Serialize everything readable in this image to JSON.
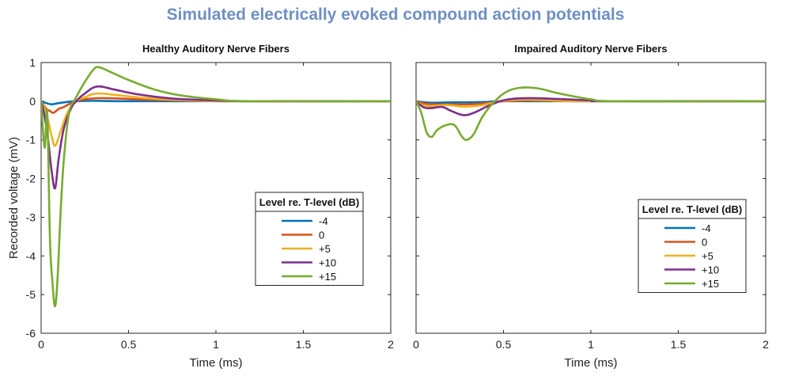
{
  "title": "Simulated electrically evoked compound action potentials",
  "chart_data": [
    {
      "type": "line",
      "title": "Healthy Auditory Nerve Fibers",
      "xlabel": "Time (ms)",
      "ylabel": "Recorded voltage (mV)",
      "xlim": [
        0,
        2
      ],
      "ylim": [
        -6,
        1
      ],
      "xticks": [
        "0",
        "0.5",
        "1",
        "1.5",
        "2"
      ],
      "yticks": [
        "1",
        "0",
        "-1",
        "-2",
        "-3",
        "-4",
        "-5",
        "-6"
      ],
      "grid": false,
      "legend_title": "Level re. T-level (dB)",
      "legend_position": "center-right",
      "series": [
        {
          "name": "-4",
          "color": "#0072bd",
          "x": [
            0,
            0.03,
            0.06,
            0.1,
            0.15,
            0.2,
            0.3,
            0.5,
            1,
            2
          ],
          "y": [
            0,
            -0.05,
            -0.08,
            -0.05,
            -0.02,
            0,
            0.01,
            0,
            0,
            0
          ]
        },
        {
          "name": "0",
          "color": "#d95319",
          "x": [
            0,
            0.03,
            0.05,
            0.07,
            0.1,
            0.13,
            0.17,
            0.2,
            0.25,
            0.33,
            0.45,
            0.6,
            0.8,
            1.1,
            2
          ],
          "y": [
            0,
            -0.2,
            -0.25,
            -0.3,
            -0.2,
            -0.15,
            -0.05,
            0,
            0.05,
            0.08,
            0.07,
            0.04,
            0.02,
            0,
            0
          ]
        },
        {
          "name": "+5",
          "color": "#edb120",
          "x": [
            0,
            0.02,
            0.04,
            0.06,
            0.08,
            0.11,
            0.15,
            0.2,
            0.25,
            0.32,
            0.45,
            0.6,
            0.8,
            1.1,
            2
          ],
          "y": [
            0,
            -0.2,
            -0.5,
            -0.9,
            -1.15,
            -0.8,
            -0.3,
            0,
            0.1,
            0.2,
            0.15,
            0.08,
            0.03,
            0,
            0
          ]
        },
        {
          "name": "+10",
          "color": "#7e2f8e",
          "x": [
            0,
            0.02,
            0.04,
            0.06,
            0.08,
            0.1,
            0.13,
            0.17,
            0.2,
            0.25,
            0.32,
            0.42,
            0.55,
            0.75,
            1.0,
            1.2,
            2
          ],
          "y": [
            0,
            -0.4,
            -1.0,
            -1.8,
            -2.25,
            -1.5,
            -0.7,
            -0.2,
            0,
            0.2,
            0.38,
            0.3,
            0.18,
            0.07,
            0.02,
            0,
            0
          ]
        },
        {
          "name": "+15",
          "color": "#77ac30",
          "x": [
            0,
            0.02,
            0.035,
            0.05,
            0.065,
            0.08,
            0.095,
            0.11,
            0.13,
            0.16,
            0.2,
            0.25,
            0.3,
            0.33,
            0.4,
            0.5,
            0.65,
            0.8,
            1.0,
            1.2,
            2
          ],
          "y": [
            0,
            -1.2,
            -0.3,
            -3.5,
            -4.7,
            -5.3,
            -4.5,
            -3.0,
            -1.5,
            -0.3,
            0.1,
            0.5,
            0.82,
            0.88,
            0.75,
            0.55,
            0.3,
            0.15,
            0.05,
            0,
            0
          ]
        }
      ]
    },
    {
      "type": "line",
      "title": "Impaired Auditory Nerve Fibers",
      "xlabel": "Time (ms)",
      "ylabel": "",
      "xlim": [
        0,
        2
      ],
      "ylim": [
        -6,
        1
      ],
      "xticks": [
        "0",
        "0.5",
        "1",
        "1.5",
        "2"
      ],
      "yticks": [],
      "grid": false,
      "legend_title": "Level re. T-level (dB)",
      "legend_position": "center-right",
      "series": [
        {
          "name": "-4",
          "color": "#0072bd",
          "x": [
            0,
            0.05,
            0.1,
            0.2,
            0.3,
            0.4,
            0.5,
            1,
            2
          ],
          "y": [
            0,
            -0.03,
            -0.04,
            -0.03,
            -0.03,
            -0.02,
            0,
            0,
            0
          ]
        },
        {
          "name": "0",
          "color": "#d95319",
          "x": [
            0,
            0.05,
            0.1,
            0.2,
            0.3,
            0.4,
            0.5,
            0.65,
            0.8,
            1.0,
            2
          ],
          "y": [
            0,
            -0.06,
            -0.08,
            -0.08,
            -0.08,
            -0.05,
            0,
            0.02,
            0.01,
            0,
            0
          ]
        },
        {
          "name": "+5",
          "color": "#edb120",
          "x": [
            0,
            0.05,
            0.1,
            0.18,
            0.28,
            0.38,
            0.48,
            0.6,
            0.75,
            0.95,
            2
          ],
          "y": [
            0,
            -0.12,
            -0.12,
            -0.1,
            -0.14,
            -0.1,
            0,
            0.04,
            0.03,
            0,
            0
          ]
        },
        {
          "name": "+10",
          "color": "#7e2f8e",
          "x": [
            0,
            0.04,
            0.08,
            0.15,
            0.2,
            0.27,
            0.33,
            0.4,
            0.48,
            0.55,
            0.65,
            0.8,
            1.0,
            1.1,
            2
          ],
          "y": [
            0,
            -0.15,
            -0.18,
            -0.15,
            -0.25,
            -0.36,
            -0.3,
            -0.15,
            0,
            0.06,
            0.08,
            0.06,
            0.02,
            0,
            0
          ]
        },
        {
          "name": "+15",
          "color": "#77ac30",
          "x": [
            0,
            0.03,
            0.06,
            0.09,
            0.12,
            0.17,
            0.22,
            0.26,
            0.29,
            0.33,
            0.38,
            0.45,
            0.52,
            0.6,
            0.7,
            0.82,
            1.0,
            1.15,
            2
          ],
          "y": [
            0,
            -0.3,
            -0.8,
            -0.92,
            -0.75,
            -0.62,
            -0.62,
            -0.9,
            -1.0,
            -0.85,
            -0.4,
            0,
            0.25,
            0.35,
            0.33,
            0.2,
            0.05,
            0,
            0
          ]
        }
      ]
    }
  ]
}
